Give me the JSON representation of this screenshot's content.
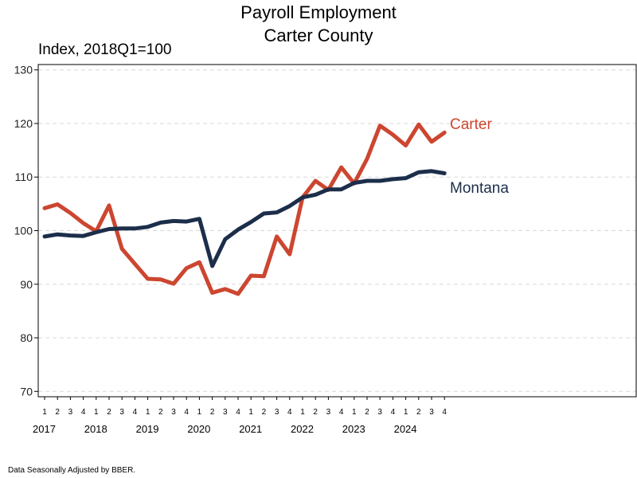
{
  "chart_data": {
    "type": "line",
    "title": "Payroll Employment",
    "subtitle": "Carter County",
    "ylabel": "Index, 2018Q1=100",
    "note": "Data Seasonally Adjusted by BBER.",
    "ylim": [
      69,
      131
    ],
    "yticks": [
      70,
      80,
      90,
      100,
      110,
      120,
      130
    ],
    "grid": true,
    "legend": "inline-right",
    "quarters": [
      "1",
      "2",
      "3",
      "4",
      "1",
      "2",
      "3",
      "4",
      "1",
      "2",
      "3",
      "4",
      "1",
      "2",
      "3",
      "4",
      "1",
      "2",
      "3",
      "4",
      "1",
      "2",
      "3",
      "4",
      "1",
      "2",
      "3",
      "4",
      "1",
      "2",
      "3",
      "4"
    ],
    "years": [
      "2017",
      "2018",
      "2019",
      "2020",
      "2021",
      "2022",
      "2023",
      "2024"
    ],
    "x": [
      "2017Q1",
      "2017Q2",
      "2017Q3",
      "2017Q4",
      "2018Q1",
      "2018Q2",
      "2018Q3",
      "2018Q4",
      "2019Q1",
      "2019Q2",
      "2019Q3",
      "2019Q4",
      "2020Q1",
      "2020Q2",
      "2020Q3",
      "2020Q4",
      "2021Q1",
      "2021Q2",
      "2021Q3",
      "2021Q4",
      "2022Q1",
      "2022Q2",
      "2022Q3",
      "2022Q4",
      "2023Q1",
      "2023Q2",
      "2023Q3",
      "2023Q4",
      "2024Q1",
      "2024Q2",
      "2024Q3",
      "2024Q4"
    ],
    "series": [
      {
        "name": "Carter",
        "color": "#CC4630",
        "values": [
          104.2,
          104.9,
          103.3,
          101.4,
          99.9,
          104.7,
          96.6,
          93.8,
          91.0,
          90.9,
          90.1,
          93.0,
          94.1,
          88.4,
          89.1,
          88.2,
          91.6,
          91.5,
          98.9,
          95.6,
          106.2,
          109.3,
          107.6,
          111.8,
          108.8,
          113.4,
          119.6,
          117.9,
          115.9,
          119.8,
          116.6,
          118.3
        ]
      },
      {
        "name": "Montana",
        "color": "#1C2E4A",
        "values": [
          98.9,
          99.3,
          99.1,
          99.0,
          99.7,
          100.3,
          100.4,
          100.4,
          100.7,
          101.5,
          101.8,
          101.7,
          102.2,
          93.4,
          98.4,
          100.2,
          101.6,
          103.2,
          103.4,
          104.6,
          106.2,
          106.7,
          107.7,
          107.7,
          108.9,
          109.3,
          109.3,
          109.6,
          109.8,
          110.9,
          111.1,
          110.7
        ]
      }
    ]
  }
}
